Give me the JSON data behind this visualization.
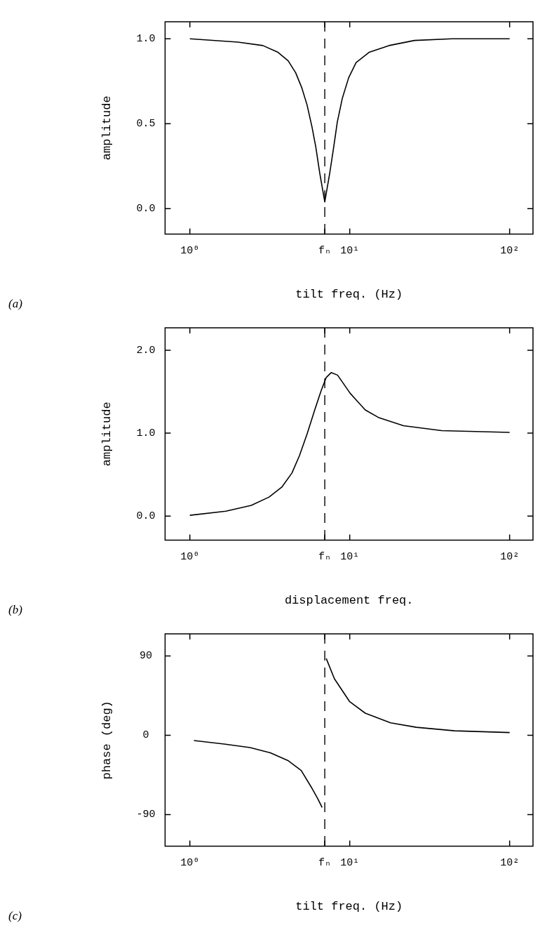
{
  "chart_data": [
    {
      "type": "line",
      "xlabel": "tilt freq. (Hz)",
      "ylabel": "amplitude",
      "log": "x",
      "grid": false,
      "legend": false,
      "marker": "none",
      "line_style": "solid",
      "xlim": [
        0.7,
        140
      ],
      "xticks": [
        {
          "value": 1,
          "label": "10⁰"
        },
        {
          "value": 6.98,
          "label": "fₙ"
        },
        {
          "value": 10,
          "label": "10¹"
        },
        {
          "value": 100,
          "label": "10²"
        }
      ],
      "ylim": [
        -0.15,
        1.1
      ],
      "yticks": [
        {
          "value": 0,
          "label": "0.0"
        },
        {
          "value": 0.5,
          "label": "0.5"
        },
        {
          "value": 1,
          "label": "1.0"
        }
      ],
      "ref_lines": [
        {
          "axis": "x",
          "value": 6.98,
          "line_style": "dashed",
          "color": "#000000"
        }
      ],
      "annotations": [
        "(a)"
      ],
      "series": [
        {
          "color": "#000000",
          "x": [
            1,
            2.0,
            2.86,
            3.56,
            4.12,
            4.59,
            5.02,
            5.41,
            5.81,
            6.14,
            6.49,
            6.98,
            7.5,
            7.93,
            8.36,
            8.99,
            9.84,
            10.96,
            13.2,
            17.6,
            25.4,
            43.7,
            100
          ],
          "values": [
            1.0,
            0.98,
            0.96,
            0.92,
            0.87,
            0.8,
            0.71,
            0.61,
            0.48,
            0.36,
            0.21,
            0.04,
            0.21,
            0.36,
            0.51,
            0.65,
            0.77,
            0.86,
            0.92,
            0.96,
            0.99,
            1.0,
            1.0
          ]
        }
      ]
    },
    {
      "type": "line",
      "xlabel": "displacement freq.",
      "ylabel": "amplitude",
      "log": "x",
      "grid": false,
      "legend": false,
      "marker": "none",
      "line_style": "solid",
      "xlim": [
        0.7,
        140
      ],
      "xticks": [
        {
          "value": 1,
          "label": "10⁰"
        },
        {
          "value": 6.98,
          "label": "fₙ"
        },
        {
          "value": 10,
          "label": "10¹"
        },
        {
          "value": 100,
          "label": "10²"
        }
      ],
      "ylim": [
        -0.29,
        2.27
      ],
      "yticks": [
        {
          "value": 0,
          "label": "0.0"
        },
        {
          "value": 1,
          "label": "1.0"
        },
        {
          "value": 2,
          "label": "2.0"
        }
      ],
      "ref_lines": [
        {
          "axis": "x",
          "value": 6.98,
          "line_style": "dashed",
          "color": "#000000"
        }
      ],
      "annotations": [
        "(b)"
      ],
      "series": [
        {
          "color": "#000000",
          "x": [
            1,
            1.68,
            2.42,
            3.13,
            3.76,
            4.35,
            4.85,
            5.41,
            6.04,
            6.62,
            7.12,
            7.65,
            8.39,
            10.07,
            12.5,
            15.1,
            21.7,
            37.6,
            100
          ],
          "values": [
            0.01,
            0.06,
            0.13,
            0.23,
            0.35,
            0.52,
            0.73,
            0.99,
            1.28,
            1.51,
            1.67,
            1.73,
            1.7,
            1.48,
            1.28,
            1.19,
            1.09,
            1.03,
            1.01
          ]
        }
      ]
    },
    {
      "type": "line",
      "xlabel": "tilt freq. (Hz)",
      "ylabel": "phase (deg)",
      "log": "x",
      "grid": false,
      "legend": false,
      "marker": "none",
      "line_style": "solid",
      "xlim": [
        0.7,
        140
      ],
      "xticks": [
        {
          "value": 1,
          "label": "10⁰"
        },
        {
          "value": 6.98,
          "label": "fₙ"
        },
        {
          "value": 10,
          "label": "10¹"
        },
        {
          "value": 100,
          "label": "10²"
        }
      ],
      "ylim": [
        -126,
        115
      ],
      "yticks": [
        {
          "value": -90,
          "label": "-90"
        },
        0,
        90
      ],
      "ref_lines": [
        {
          "axis": "x",
          "value": 6.98,
          "line_style": "dashed",
          "color": "#000000"
        }
      ],
      "annotations": [
        "(c)"
      ],
      "series": [
        {
          "color": "#000000",
          "x": [
            1.06,
            1.64,
            2.38,
            3.19,
            4.13,
            4.97,
            5.75,
            6.31,
            6.72,
            6.98,
            7.13,
            8.02,
            10,
            12.5,
            18.0,
            26.1,
            45.3,
            100
          ],
          "values": [
            -6,
            -10,
            -14,
            -20,
            -29,
            -40,
            -59,
            -72,
            -82,
            null,
            87,
            64,
            38,
            25,
            14,
            9,
            5,
            3
          ]
        }
      ]
    }
  ]
}
